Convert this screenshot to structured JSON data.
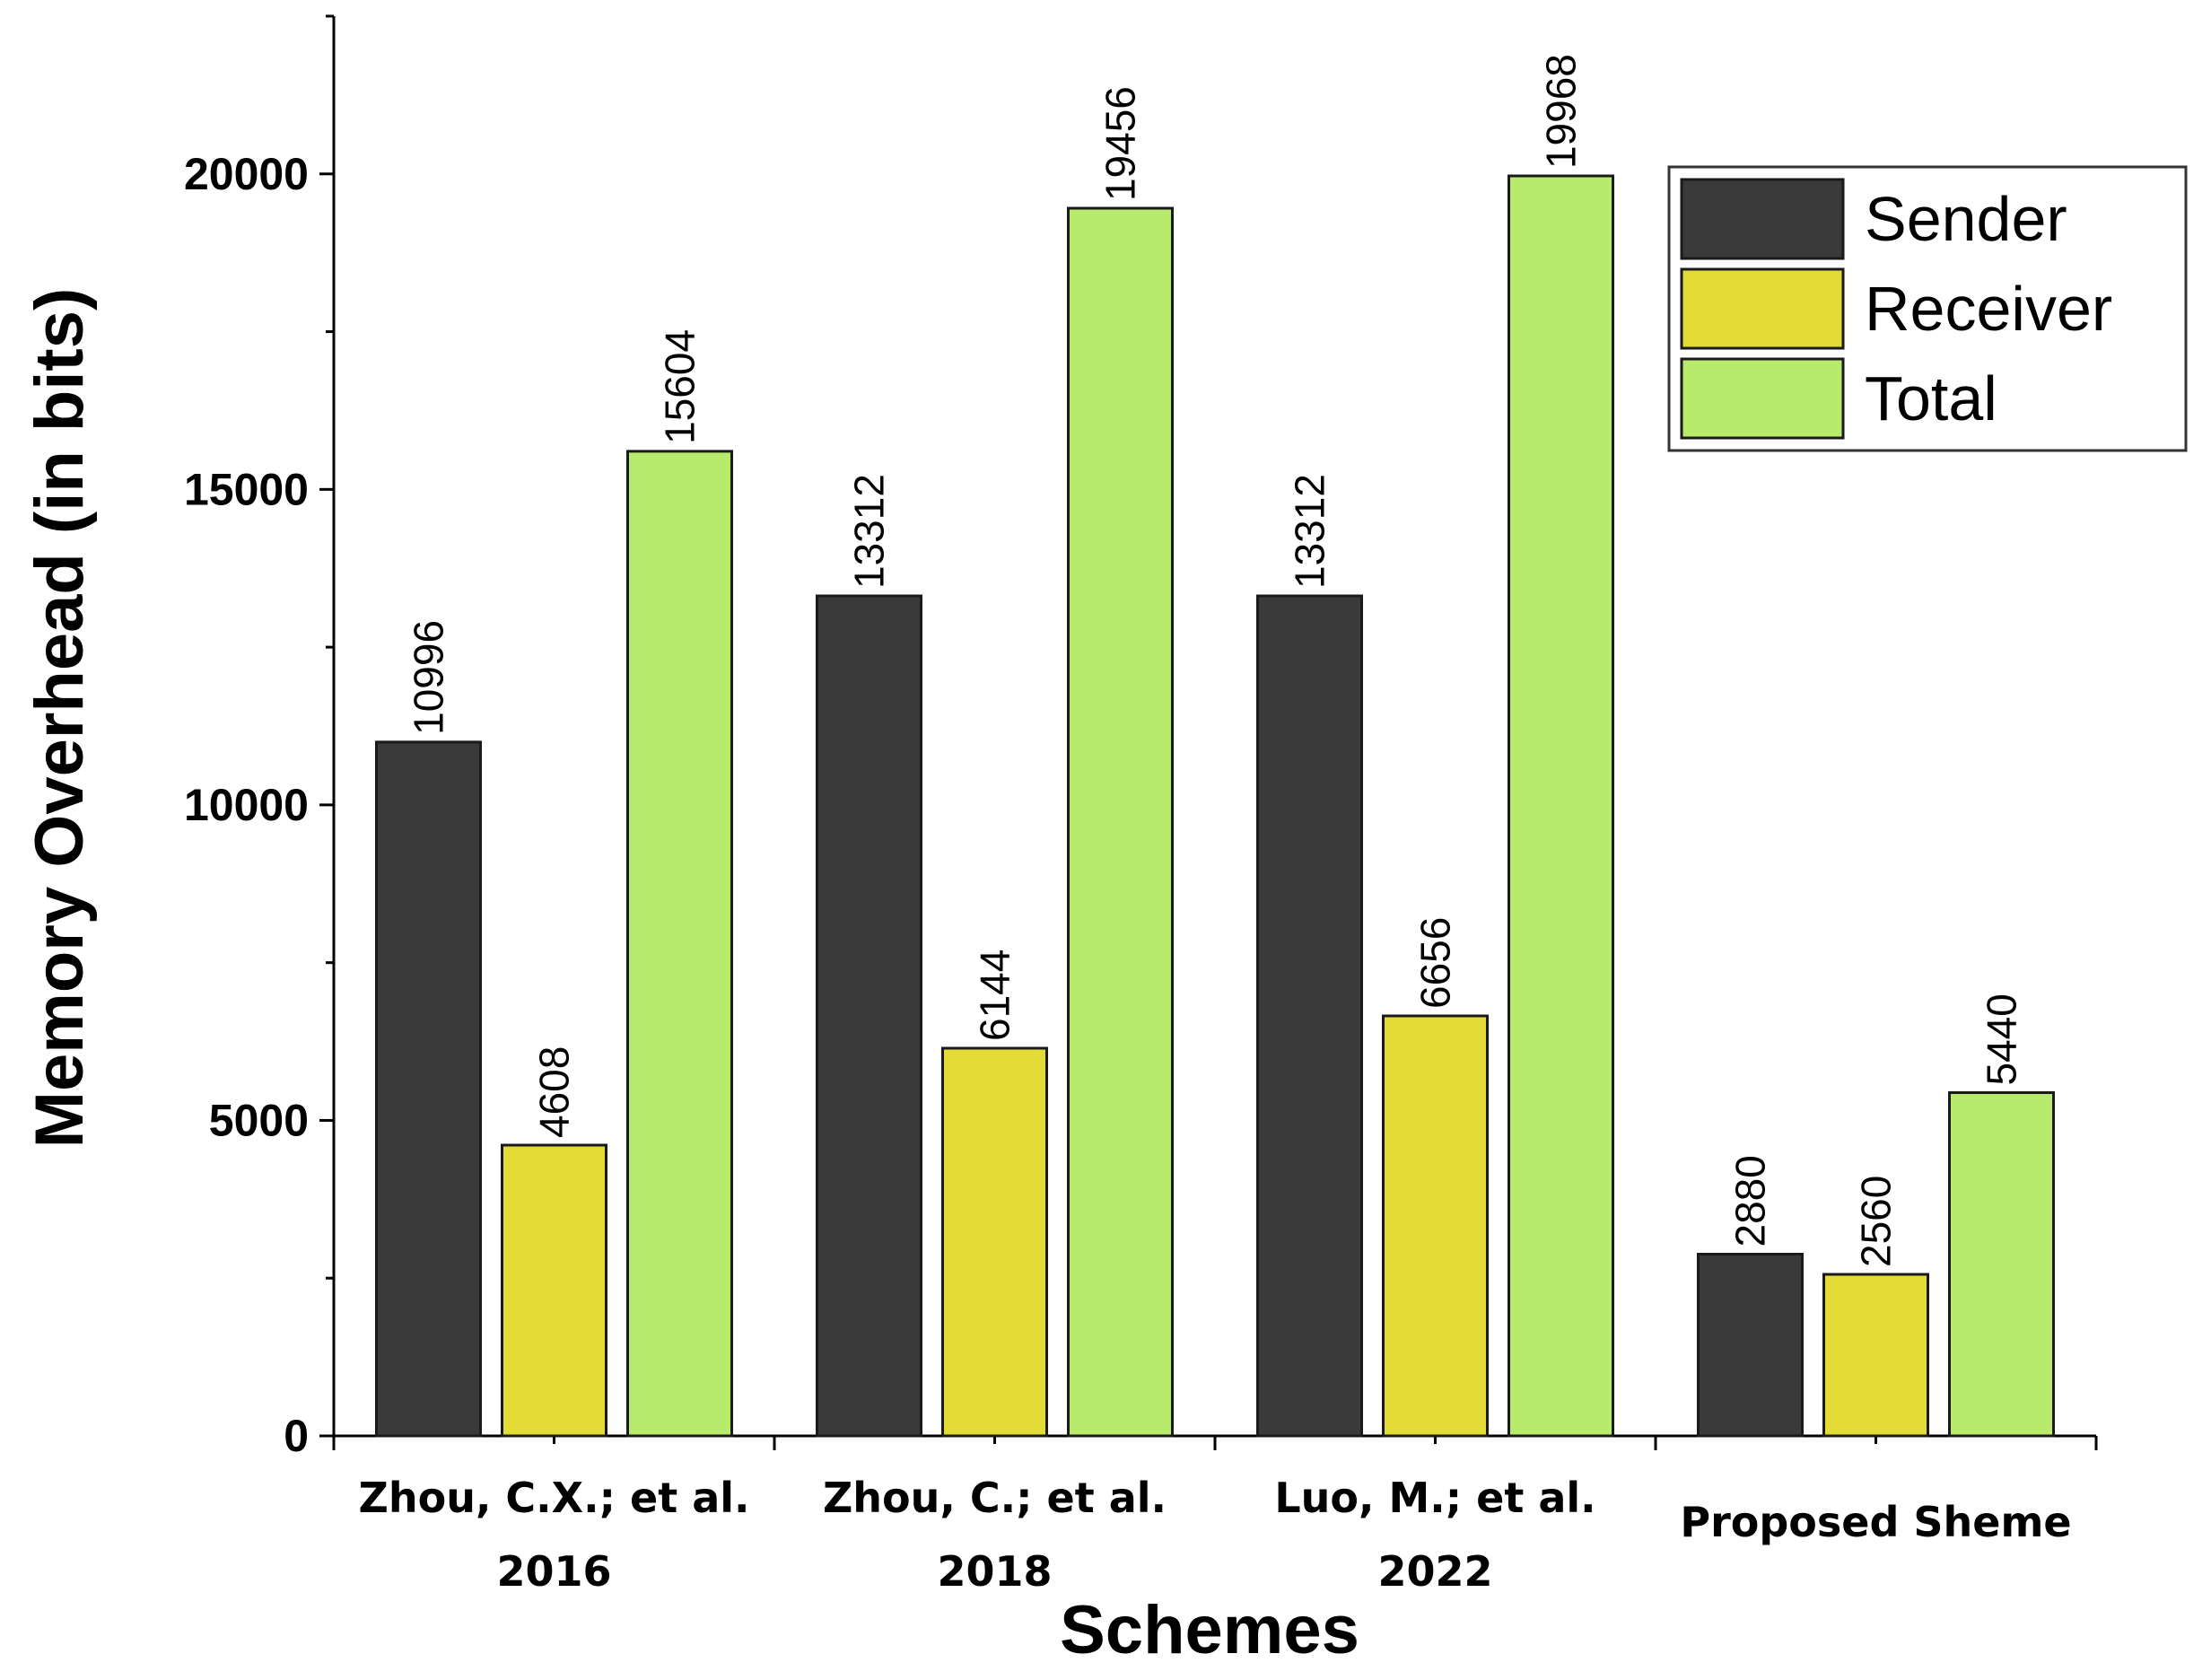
{
  "chart_data": {
    "type": "bar",
    "title": "",
    "xlabel": "Schemes",
    "ylabel": "Memory Overhead (in bits)",
    "ylim": [
      0,
      22500
    ],
    "yticks": [
      0,
      5000,
      10000,
      15000,
      20000
    ],
    "categories": [
      [
        "Zhou, C.X.; et al.",
        "2016"
      ],
      [
        "Zhou, C.; et al.",
        "2018"
      ],
      [
        "Luo, M.; et al.",
        "2022"
      ],
      [
        "Proposed Sheme"
      ]
    ],
    "series": [
      {
        "name": "Sender",
        "color": "#3a3a3a",
        "values": [
          10996,
          13312,
          13312,
          2880
        ]
      },
      {
        "name": "Receiver",
        "color": "#e3dc36",
        "values": [
          4608,
          6144,
          6656,
          2560
        ]
      },
      {
        "name": "Total",
        "color": "#b8ea6c",
        "values": [
          15604,
          19456,
          19968,
          5440
        ]
      }
    ],
    "legend_position": "top-right",
    "grid": false
  }
}
